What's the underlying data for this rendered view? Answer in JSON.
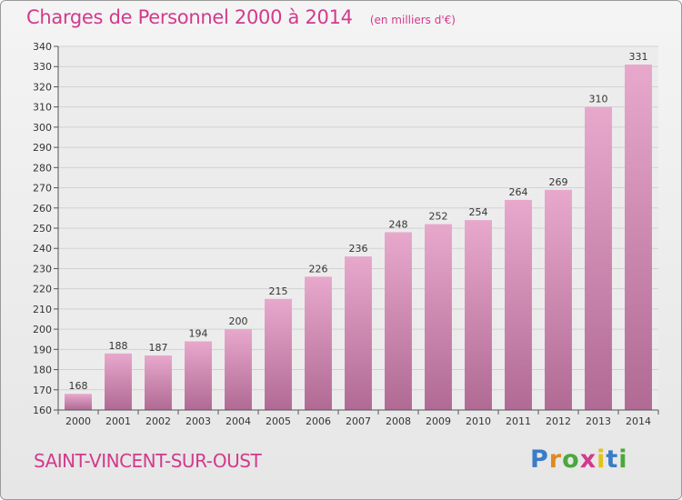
{
  "header": {
    "title": "Charges de Personnel 2000 à 2014",
    "subtitle": "(en milliers d'€)"
  },
  "footer": {
    "commune": "SAINT-VINCENT-SUR-OUST",
    "logo_text": "Proxiti",
    "logo_colors": [
      "#3a7cc7",
      "#e08a1e",
      "#4aa83c",
      "#d23a8c",
      "#e0c21e",
      "#3a7cc7",
      "#4aa83c"
    ]
  },
  "colors": {
    "accent": "#d23a8c",
    "bar_top": "#e8a8cc",
    "bar_bottom": "#b06a94"
  },
  "chart_data": {
    "type": "bar",
    "title": "Charges de Personnel 2000 à 2014",
    "subtitle": "(en milliers d'€)",
    "categories": [
      "2000",
      "2001",
      "2002",
      "2003",
      "2004",
      "2005",
      "2006",
      "2007",
      "2008",
      "2009",
      "2010",
      "2011",
      "2012",
      "2013",
      "2014"
    ],
    "values": [
      168,
      188,
      187,
      194,
      200,
      215,
      226,
      236,
      248,
      252,
      254,
      264,
      269,
      310,
      331
    ],
    "ylim": [
      160,
      340
    ],
    "yticks": [
      160,
      170,
      180,
      190,
      200,
      210,
      220,
      230,
      240,
      250,
      260,
      270,
      280,
      290,
      300,
      310,
      320,
      330,
      340
    ],
    "xlabel": "",
    "ylabel": "",
    "grid": true,
    "legend": "none"
  }
}
